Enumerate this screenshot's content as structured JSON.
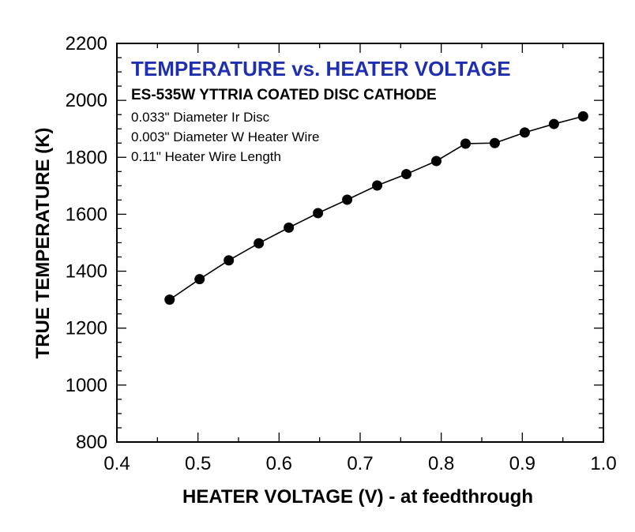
{
  "chart_data": {
    "type": "line",
    "title": "TEMPERATURE vs. HEATER VOLTAGE",
    "subtitle": "ES-535W YTTRIA COATED DISC CATHODE",
    "notes": [
      "0.033\" Diameter Ir Disc",
      "0.003\" Diameter W Heater Wire",
      "0.11\" Heater Wire Length"
    ],
    "xlabel": "HEATER VOLTAGE (V) - at feedthrough",
    "ylabel": "TRUE TEMPERATURE (K)",
    "xlim": [
      0.4,
      1.0
    ],
    "ylim": [
      800,
      2200
    ],
    "xticks": [
      "0.4",
      "0.5",
      "0.6",
      "0.7",
      "0.8",
      "0.9",
      "1.0"
    ],
    "yticks": [
      "800",
      "1000",
      "1200",
      "1400",
      "1600",
      "1800",
      "2000",
      "2200"
    ],
    "grid": false,
    "marker": "filled-circle",
    "line_color": "#000000",
    "title_color": "#1f2fb0",
    "series": [
      {
        "x": [
          0.465,
          0.502,
          0.538,
          0.575,
          0.612,
          0.648,
          0.684,
          0.721,
          0.757,
          0.794,
          0.83,
          0.866,
          0.903,
          0.939,
          0.975
        ],
        "y": [
          1300,
          1372,
          1438,
          1498,
          1553,
          1604,
          1651,
          1701,
          1741,
          1787,
          1848,
          1850,
          1887,
          1917,
          1944
        ]
      }
    ]
  }
}
